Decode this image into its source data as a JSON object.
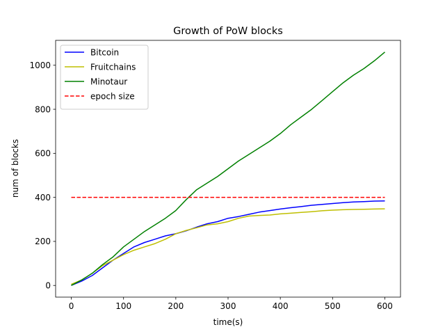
{
  "chart_data": {
    "type": "line",
    "title": "Growth of PoW blocks",
    "xlabel": "time(s)",
    "ylabel": "num of blocks",
    "xlim": [
      -30,
      630
    ],
    "ylim": [
      -53,
      1113
    ],
    "xticks": [
      0,
      100,
      200,
      300,
      400,
      500,
      600
    ],
    "yticks": [
      0,
      200,
      400,
      600,
      800,
      1000
    ],
    "grid": false,
    "legend": "upper-left",
    "series": [
      {
        "name": "Bitcoin",
        "color": "#0000ff",
        "dash": "solid",
        "x": [
          0,
          20,
          40,
          60,
          80,
          100,
          120,
          140,
          160,
          180,
          200,
          220,
          240,
          260,
          280,
          300,
          320,
          340,
          360,
          380,
          400,
          420,
          440,
          460,
          480,
          500,
          520,
          540,
          560,
          580,
          600
        ],
        "y": [
          0,
          20,
          45,
          80,
          115,
          145,
          175,
          195,
          210,
          225,
          235,
          248,
          265,
          280,
          290,
          305,
          313,
          323,
          333,
          340,
          347,
          353,
          358,
          364,
          368,
          372,
          376,
          379,
          381,
          383,
          384
        ]
      },
      {
        "name": "Fruitchains",
        "color": "#bfbf00",
        "dash": "solid",
        "x": [
          0,
          20,
          40,
          60,
          80,
          100,
          120,
          140,
          160,
          180,
          200,
          220,
          240,
          260,
          280,
          300,
          320,
          340,
          360,
          380,
          400,
          420,
          440,
          460,
          480,
          500,
          520,
          540,
          560,
          580,
          600
        ],
        "y": [
          5,
          25,
          55,
          90,
          115,
          140,
          160,
          175,
          190,
          210,
          235,
          250,
          262,
          275,
          280,
          290,
          305,
          315,
          318,
          320,
          325,
          328,
          332,
          335,
          339,
          342,
          344,
          345,
          346,
          347,
          348
        ]
      },
      {
        "name": "Minotaur",
        "color": "#008000",
        "dash": "solid",
        "x": [
          0,
          20,
          40,
          60,
          80,
          100,
          120,
          140,
          160,
          180,
          200,
          220,
          240,
          260,
          280,
          300,
          320,
          340,
          360,
          380,
          400,
          420,
          440,
          460,
          480,
          500,
          520,
          540,
          560,
          580,
          600
        ],
        "y": [
          0,
          25,
          55,
          95,
          130,
          175,
          210,
          245,
          275,
          305,
          340,
          390,
          435,
          465,
          495,
          530,
          565,
          595,
          625,
          655,
          690,
          730,
          765,
          800,
          840,
          880,
          920,
          955,
          985,
          1020,
          1060
        ]
      },
      {
        "name": "epoch size",
        "color": "#ff0000",
        "dash": "dashed",
        "x": [
          0,
          600
        ],
        "y": [
          400,
          400
        ]
      }
    ]
  }
}
